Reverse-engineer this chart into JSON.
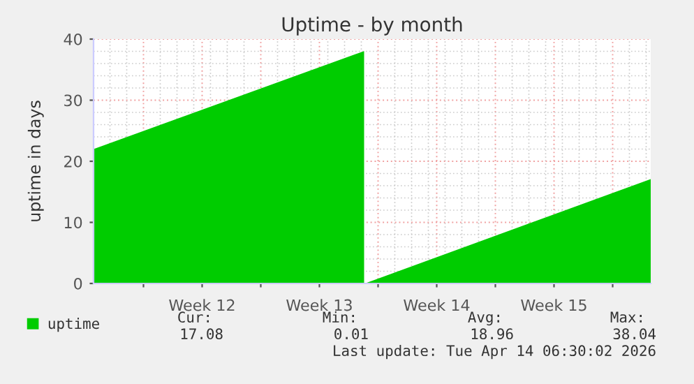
{
  "chart_data": {
    "type": "area",
    "title": "Uptime - by month",
    "ylabel": "uptime in days",
    "x": [
      "2026-03-12T00:30",
      "2026-03-28T04:00",
      "2026-03-28T04:30",
      "2026-03-28T05:00",
      "2026-04-14T06:30"
    ],
    "series": [
      {
        "name": "uptime",
        "color": "#00cc00",
        "values": [
          22.0,
          38.04,
          null,
          0.01,
          17.08
        ]
      }
    ],
    "xlim": [
      "2026-03-12T00:30",
      "2026-04-14T06:30"
    ],
    "xticks": [
      {
        "value": "2026-03-15",
        "label": null
      },
      {
        "value": "2026-03-18T12:00",
        "label": "Week 12"
      },
      {
        "value": "2026-03-22",
        "label": null
      },
      {
        "value": "2026-03-25T12:00",
        "label": "Week 13"
      },
      {
        "value": "2026-03-29",
        "label": null
      },
      {
        "value": "2026-04-01T12:00",
        "label": "Week 14"
      },
      {
        "value": "2026-04-05",
        "label": null
      },
      {
        "value": "2026-04-08T12:00",
        "label": "Week 15"
      },
      {
        "value": "2026-04-12",
        "label": null
      }
    ],
    "ylim": [
      0,
      40
    ],
    "yticks": [
      0,
      10,
      20,
      30,
      40
    ],
    "grid": true,
    "legend": "bottom",
    "annotations": [
      "Cur:",
      "Min:",
      "Avg:",
      "Max:",
      "17.08",
      "0.01",
      "18.96",
      "38.04",
      "Last update: Tue Apr 14 06:30:02 2026"
    ]
  }
}
